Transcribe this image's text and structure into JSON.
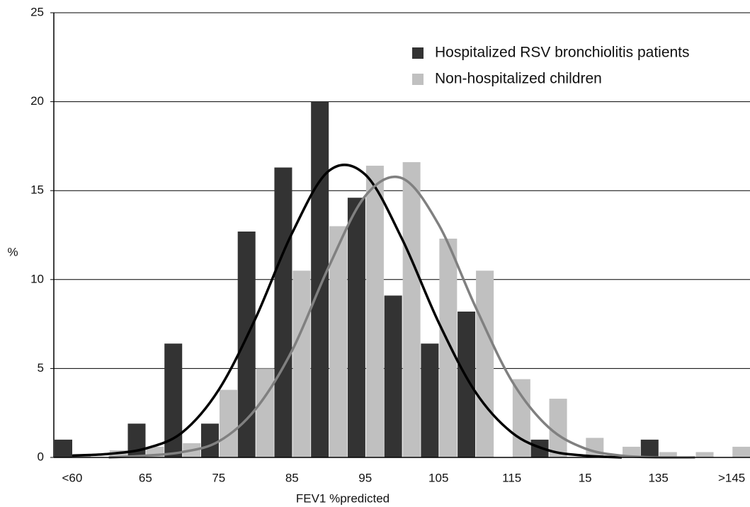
{
  "chart_data": {
    "type": "bar",
    "x_label": "FEV1 %predicted",
    "y_label": "%",
    "categories": [
      "<60",
      null,
      "65",
      null,
      "75",
      null,
      "85",
      null,
      "95",
      null,
      "105",
      null,
      "115",
      null,
      "15",
      null,
      "135",
      null,
      ">145"
    ],
    "series": [
      {
        "name": "Hospitalized RSV bronchiolitis patients",
        "color": "#333333",
        "values": [
          1.0,
          0,
          1.9,
          6.4,
          1.9,
          12.7,
          16.3,
          20.0,
          14.6,
          9.1,
          6.4,
          8.2,
          0,
          1.0,
          0,
          0,
          1.0,
          0,
          0
        ]
      },
      {
        "name": "Non-hospitalized children",
        "color": "#c0c0c0",
        "values": [
          0.2,
          0.4,
          0.6,
          0.8,
          3.8,
          5.0,
          10.5,
          13.0,
          16.4,
          16.6,
          12.3,
          10.5,
          4.4,
          3.3,
          1.1,
          0.6,
          0.3,
          0.3,
          0.6
        ]
      }
    ],
    "curves": [
      {
        "color": "#000000",
        "values": [
          0.1,
          0.2,
          0.5,
          1.4,
          3.8,
          7.8,
          12.6,
          16.1,
          15.9,
          12.3,
          7.6,
          3.7,
          1.4,
          0.4,
          0.1,
          0.0,
          null,
          null,
          null
        ]
      },
      {
        "color": "#808080",
        "values": [
          null,
          0.0,
          0.1,
          0.3,
          0.9,
          2.7,
          6.0,
          10.7,
          14.7,
          15.7,
          13.1,
          8.5,
          4.3,
          1.7,
          0.5,
          0.1,
          0.0,
          0.0,
          null
        ]
      }
    ],
    "ylim": [
      0,
      25
    ],
    "yticks": [
      0,
      5,
      10,
      15,
      20,
      25
    ],
    "grid": true,
    "legend": "top-right"
  }
}
